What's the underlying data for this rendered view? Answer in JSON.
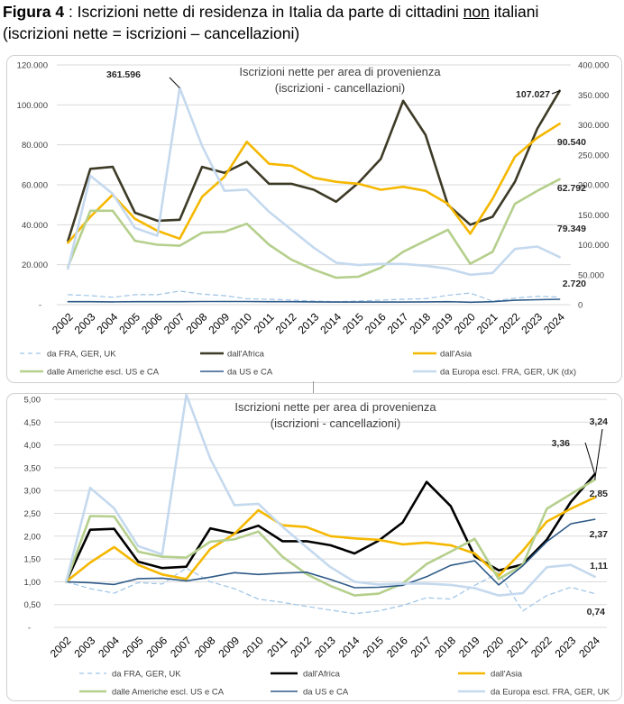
{
  "figure": {
    "label": "Figura 4",
    "text1": " : Iscrizioni nette di residenza in Italia da parte di cittadini ",
    "underlined": "non",
    "text2": " italiani",
    "line2": "(iscrizioni nette = iscrizioni – cancellazioni)"
  },
  "chart_data": [
    {
      "type": "line",
      "title": "Iscrizioni nette per area di provenienza",
      "subtitle": "(iscrizioni - cancellazioni)",
      "x": [
        "2002",
        "2003",
        "2004",
        "2005",
        "2006",
        "2007",
        "2008",
        "2009",
        "2010",
        "2011",
        "2012",
        "2013",
        "2014",
        "2015",
        "2016",
        "2017",
        "2018",
        "2019",
        "2020",
        "2021",
        "2022",
        "2023",
        "2024"
      ],
      "y_left_ticks": [
        "-",
        "20.000",
        "40.000",
        "60.000",
        "80.000",
        "100.000",
        "120.000"
      ],
      "y_right_ticks": [
        "0",
        "50.000",
        "100.000",
        "150.000",
        "200.000",
        "250.000",
        "300.000",
        "350.000",
        "400.000"
      ],
      "ylim_left": [
        0,
        120000
      ],
      "ylim_right": [
        0,
        400000
      ],
      "grid": true,
      "legend_position": "bottom",
      "series": [
        {
          "name": "da FRA, GER, UK",
          "color": "#9dc3e6",
          "style": "dashed",
          "width": 1.2,
          "axis": "left",
          "values": [
            5000,
            4500,
            3700,
            5000,
            5000,
            6800,
            5300,
            4500,
            3000,
            2700,
            2300,
            1800,
            1500,
            1800,
            2300,
            2700,
            3000,
            4700,
            5800,
            1700,
            3300,
            4200,
            3800
          ]
        },
        {
          "name": "dall'Africa",
          "color": "#3d3a26",
          "style": "solid",
          "width": 2.6,
          "axis": "left",
          "values": [
            32000,
            68000,
            69000,
            46000,
            42000,
            42500,
            69000,
            66000,
            71500,
            60500,
            60500,
            57500,
            51500,
            61000,
            73000,
            102000,
            85000,
            50000,
            40000,
            44000,
            61500,
            88000,
            107027
          ]
        },
        {
          "name": "dall'Asia",
          "color": "#f5b800",
          "style": "solid",
          "width": 2.6,
          "axis": "left",
          "values": [
            31000,
            44000,
            55000,
            43000,
            37000,
            33000,
            54000,
            64000,
            81500,
            70500,
            69500,
            63500,
            61500,
            60500,
            57500,
            59000,
            57000,
            50500,
            35500,
            53000,
            74000,
            83500,
            90540
          ]
        },
        {
          "name": "dalle Americhe escl. US e CA",
          "color": "#b5cf8c",
          "style": "solid",
          "width": 2.6,
          "axis": "left",
          "values": [
            19000,
            47000,
            47000,
            32000,
            30000,
            29500,
            36000,
            36500,
            40500,
            30000,
            22500,
            17500,
            13500,
            14000,
            18500,
            26500,
            32000,
            37500,
            20500,
            26500,
            50500,
            57000,
            62792
          ]
        },
        {
          "name": "da  US e CA",
          "color": "#2e5a88",
          "style": "solid",
          "width": 1.6,
          "axis": "left",
          "values": [
            1500,
            1500,
            1400,
            1500,
            1500,
            1500,
            1600,
            1600,
            1600,
            1500,
            1500,
            1400,
            1300,
            1300,
            1300,
            1300,
            1400,
            1500,
            1200,
            1500,
            2200,
            2500,
            2720
          ]
        },
        {
          "name": "da Europa escl. FRA, GER, UK (dx)",
          "color": "#c5d9ee",
          "style": "solid",
          "width": 2.6,
          "axis": "right",
          "values": [
            60000,
            215000,
            185000,
            128000,
            115000,
            361596,
            265000,
            190000,
            192000,
            155000,
            125000,
            95000,
            70000,
            66000,
            68000,
            68000,
            65000,
            60000,
            50000,
            53000,
            93000,
            97000,
            79349
          ]
        }
      ],
      "annotations": [
        "361.596",
        "107.027",
        "90.540",
        "62.792",
        "79.349",
        "2.720"
      ]
    },
    {
      "type": "line",
      "title": "Iscrizioni nette per area di provenienza",
      "subtitle": "(iscrizioni - cancellazioni)",
      "x": [
        "2002",
        "2003",
        "2004",
        "2005",
        "2006",
        "2007",
        "2008",
        "2009",
        "2010",
        "2011",
        "2012",
        "2013",
        "2014",
        "2015",
        "2016",
        "2017",
        "2018",
        "2019",
        "2020",
        "2021",
        "2022",
        "2023",
        "2024"
      ],
      "y_ticks": [
        "-",
        "0,50",
        "1,00",
        "1,50",
        "2,00",
        "2,50",
        "3,00",
        "3,50",
        "4,00",
        "4,50",
        "5,00"
      ],
      "ylim": [
        0,
        5
      ],
      "grid": true,
      "legend_position": "bottom",
      "series": [
        {
          "name": "da FRA, GER, UK",
          "color": "#9dc3e6",
          "style": "dashed",
          "width": 1.2,
          "values": [
            1.0,
            0.85,
            0.75,
            0.98,
            0.95,
            1.3,
            1.0,
            0.85,
            0.62,
            0.55,
            0.46,
            0.38,
            0.3,
            0.36,
            0.48,
            0.65,
            0.62,
            0.92,
            1.2,
            0.36,
            0.7,
            0.88,
            0.74
          ]
        },
        {
          "name": "dall'Africa",
          "color": "#000000",
          "style": "solid",
          "width": 2.6,
          "values": [
            1.0,
            2.14,
            2.16,
            1.44,
            1.3,
            1.33,
            2.17,
            2.06,
            2.23,
            1.89,
            1.89,
            1.8,
            1.62,
            1.9,
            2.3,
            3.19,
            2.66,
            1.56,
            1.25,
            1.38,
            1.92,
            2.75,
            3.36
          ]
        },
        {
          "name": "dall'Asia",
          "color": "#f5b800",
          "style": "solid",
          "width": 2.6,
          "values": [
            1.0,
            1.42,
            1.76,
            1.37,
            1.16,
            1.06,
            1.72,
            2.05,
            2.57,
            2.24,
            2.2,
            2.0,
            1.95,
            1.92,
            1.82,
            1.86,
            1.8,
            1.62,
            1.13,
            1.68,
            2.32,
            2.6,
            2.85
          ]
        },
        {
          "name": "dalle Americhe escl. US e CA",
          "color": "#b5cf8c",
          "style": "solid",
          "width": 2.6,
          "values": [
            1.0,
            2.44,
            2.43,
            1.66,
            1.55,
            1.53,
            1.88,
            1.93,
            2.1,
            1.55,
            1.17,
            0.91,
            0.7,
            0.74,
            0.96,
            1.39,
            1.66,
            1.94,
            1.06,
            1.37,
            2.6,
            2.92,
            3.24
          ]
        },
        {
          "name": "da  US e CA",
          "color": "#2e5a88",
          "style": "solid",
          "width": 1.6,
          "values": [
            1.0,
            0.98,
            0.94,
            1.07,
            1.08,
            1.02,
            1.1,
            1.2,
            1.16,
            1.19,
            1.21,
            1.05,
            0.87,
            0.88,
            0.92,
            1.11,
            1.36,
            1.46,
            0.93,
            1.35,
            1.88,
            2.27,
            2.37
          ]
        },
        {
          "name": "da Europa escl. FRA, GER, UK",
          "color": "#c5d9ee",
          "style": "solid",
          "width": 2.6,
          "values": [
            1.0,
            3.06,
            2.61,
            1.78,
            1.6,
            5.1,
            3.7,
            2.68,
            2.71,
            2.21,
            1.76,
            1.32,
            1.0,
            0.94,
            0.96,
            0.96,
            0.93,
            0.86,
            0.7,
            0.75,
            1.32,
            1.37,
            1.11
          ]
        }
      ],
      "annotations": [
        "3,36",
        "3,24",
        "2,85",
        "2,37",
        "1,11",
        "0,74"
      ]
    }
  ]
}
